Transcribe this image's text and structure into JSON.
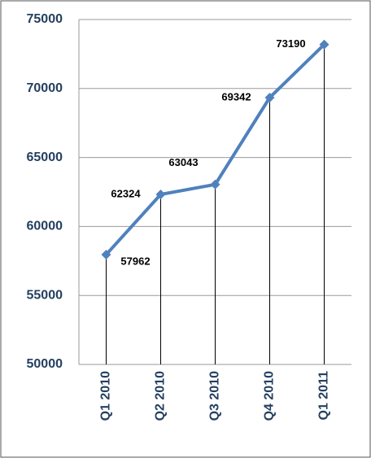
{
  "chart_data": {
    "type": "line",
    "categories": [
      "Q1 2010",
      "Q2 2010",
      "Q3 2010",
      "Q4 2010",
      "Q1 2011"
    ],
    "values": [
      57962,
      62324,
      63043,
      69342,
      73190
    ],
    "color": "#4f81bd",
    "ylim": [
      50000,
      75000
    ],
    "yticks": [
      50000,
      55000,
      60000,
      65000,
      70000,
      75000
    ],
    "grid": true,
    "drop_lines": true
  }
}
